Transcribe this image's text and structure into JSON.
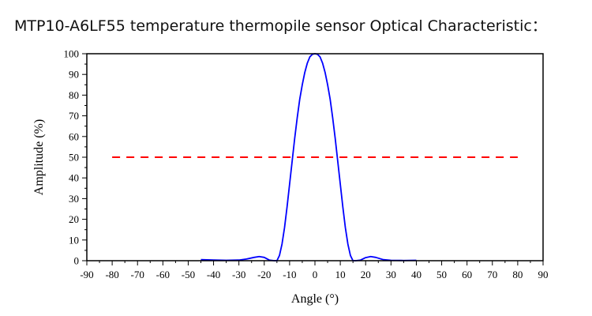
{
  "title": "MTP10-A6LF55 temperature thermopile sensor Optical Characteristic：",
  "chart_data": {
    "type": "line",
    "xlabel": "Angle (°)",
    "ylabel": "Amplitude (%)",
    "xlim": [
      -90,
      90
    ],
    "ylim": [
      0,
      100
    ],
    "xticks": [
      -90,
      -80,
      -70,
      -60,
      -50,
      -40,
      -30,
      -20,
      -10,
      0,
      10,
      20,
      30,
      40,
      50,
      60,
      70,
      80,
      90
    ],
    "yticks": [
      0,
      10,
      20,
      30,
      40,
      50,
      60,
      70,
      80,
      90,
      100
    ],
    "xtick_labels": [
      "-90",
      "-80",
      "-70",
      "-60",
      "-50",
      "-40",
      "-30",
      "-20",
      "-10",
      "0",
      "10",
      "20",
      "30",
      "40",
      "50",
      "60",
      "70",
      "80",
      "90"
    ],
    "ytick_labels": [
      "0",
      "10",
      "20",
      "30",
      "40",
      "50",
      "60",
      "70",
      "80",
      "90",
      "100"
    ],
    "grid": false,
    "series": [
      {
        "color": "#0000ff",
        "style": "solid",
        "x": [
          -45,
          -40,
          -35,
          -30,
          -27,
          -24,
          -22,
          -20,
          -18,
          -16,
          -15,
          -14,
          -13,
          -12,
          -11,
          -10,
          -9,
          -8,
          -7,
          -6,
          -5,
          -4,
          -3,
          -2,
          -1,
          0,
          1,
          2,
          3,
          4,
          5,
          6,
          7,
          8,
          9,
          10,
          11,
          12,
          13,
          14,
          15,
          16,
          18,
          20,
          22,
          24,
          27,
          30,
          35,
          40
        ],
        "y": [
          0.5,
          0.3,
          0.2,
          0.3,
          0.8,
          1.6,
          2.0,
          1.6,
          0.3,
          0,
          0,
          2.5,
          8,
          16,
          26,
          37,
          48,
          59,
          69,
          78,
          85,
          91,
          95.5,
          98.5,
          99.7,
          100,
          99.7,
          98.5,
          95.5,
          91,
          85,
          78,
          69,
          59,
          48,
          37,
          26,
          16,
          8,
          2.5,
          0,
          0,
          0.3,
          1.5,
          2.0,
          1.6,
          0.5,
          0.2,
          0.1,
          0.2
        ]
      },
      {
        "color": "#ff0000",
        "style": "dashed",
        "x": [
          -80,
          80
        ],
        "y": [
          50,
          50
        ]
      }
    ]
  }
}
